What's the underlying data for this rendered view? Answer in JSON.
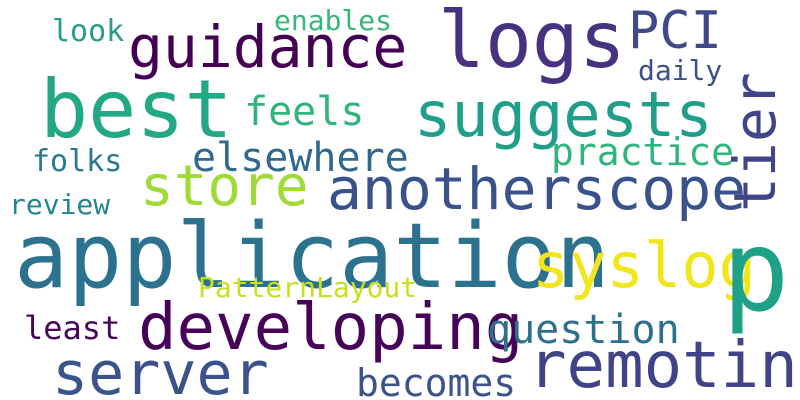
{
  "words": [
    {
      "text": "enables",
      "color": "#35b779"
    },
    {
      "text": "look",
      "color": "#2a9b86"
    },
    {
      "text": "guidance",
      "color": "#440154"
    },
    {
      "text": "logs",
      "color": "#46327e"
    },
    {
      "text": "PCI",
      "color": "#3e4a89"
    },
    {
      "text": "daily",
      "color": "#3b4f8a"
    },
    {
      "text": "best",
      "color": "#22a884"
    },
    {
      "text": "feels",
      "color": "#2fb47c"
    },
    {
      "text": "suggests",
      "color": "#1f9e89"
    },
    {
      "text": "tier",
      "color": "#414487"
    },
    {
      "text": "elsewhere",
      "color": "#31688e"
    },
    {
      "text": "practice",
      "color": "#2fb47c"
    },
    {
      "text": "folks",
      "color": "#2a788e"
    },
    {
      "text": "store",
      "color": "#a0da39"
    },
    {
      "text": "anotherscope",
      "color": "#3a528b"
    },
    {
      "text": "review",
      "color": "#25858e"
    },
    {
      "text": "application",
      "color": "#2c728e"
    },
    {
      "text": "syslog",
      "color": "#f1e51d"
    },
    {
      "text": "p",
      "color": "#1fa187"
    },
    {
      "text": "PatternLayout",
      "color": "#c8e020"
    },
    {
      "text": "least",
      "color": "#46075a"
    },
    {
      "text": "developing",
      "color": "#450457"
    },
    {
      "text": "question",
      "color": "#2e6f8e"
    },
    {
      "text": "server",
      "color": "#3b528b"
    },
    {
      "text": "remoting",
      "color": "#404387"
    },
    {
      "text": "becomes",
      "color": "#3b528b"
    }
  ]
}
